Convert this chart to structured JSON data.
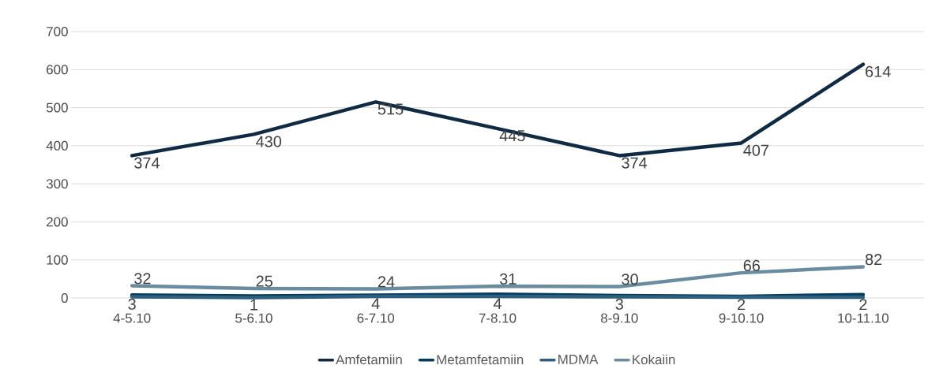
{
  "chart_data": {
    "type": "line",
    "categories": [
      "4-5.10",
      "5-6.10",
      "6-7.10",
      "7-8.10",
      "8-9.10",
      "9-10.10",
      "10-11.10"
    ],
    "series": [
      {
        "name": "Amfetamiin",
        "color": "#0e2a44",
        "values": [
          374,
          430,
          515,
          445,
          374,
          407,
          614
        ],
        "value_labels": [
          "374",
          "430",
          "515",
          "445",
          "374",
          "407",
          "614"
        ]
      },
      {
        "name": "Metamfetamiin",
        "color": "#013b5e",
        "values": [
          8,
          5,
          7,
          10,
          6,
          4,
          9
        ]
      },
      {
        "name": "MDMA",
        "color": "#2f5f7f",
        "values": [
          3,
          1,
          4,
          4,
          3,
          2,
          2
        ],
        "value_labels": [
          "3",
          "1",
          "4",
          "4",
          "3",
          "2",
          "2"
        ]
      },
      {
        "name": "Kokaiin",
        "color": "#6a8ca0",
        "values": [
          32,
          25,
          24,
          31,
          30,
          66,
          82
        ],
        "value_labels": [
          "32",
          "25",
          "24",
          "31",
          "30",
          "66",
          "82"
        ]
      }
    ],
    "ylim": [
      0,
      700
    ],
    "yticks": [
      0,
      100,
      200,
      300,
      400,
      500,
      600,
      700
    ],
    "grid": "y",
    "legend": "bottom",
    "marker": "none",
    "line_style": "solid"
  }
}
